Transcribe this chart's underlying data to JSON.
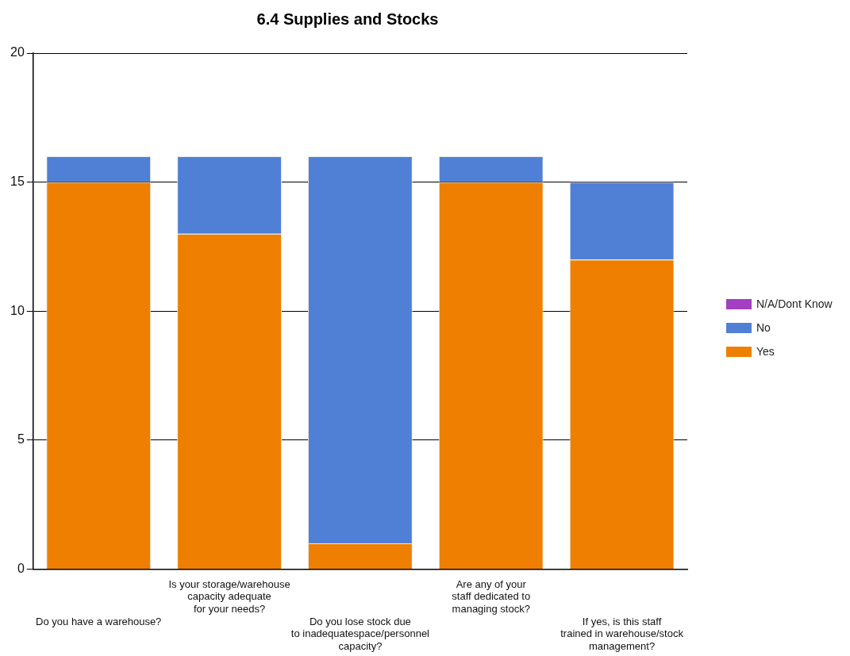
{
  "chart_data": {
    "type": "bar",
    "title": "6.4 Supplies and Stocks",
    "stacked": true,
    "legend": "right",
    "grid": "y",
    "categories": [
      "Do you have a warehouse?",
      "Is your storage/warehouse\ncapacity adequate\nfor your needs?",
      "Do you lose stock due\nto inadequatespace/personnel\ncapacity?",
      "Are any of your\nstaff dedicated to\nmanaging stock?",
      "If yes, is this staff\ntrained in warehouse/stock\nmanagement?"
    ],
    "series": [
      {
        "name": "Yes",
        "color": "#ee7f00",
        "values": [
          15,
          13,
          1,
          15,
          12
        ]
      },
      {
        "name": "No",
        "color": "#4f80d6",
        "values": [
          1,
          3,
          15,
          1,
          3
        ]
      },
      {
        "name": "N/A/Dont Know",
        "color": "#a33fc0",
        "values": [
          0,
          0,
          0,
          0,
          0
        ]
      }
    ],
    "ylim": [
      0,
      20
    ],
    "yticks": [
      0,
      5,
      10,
      15,
      20
    ]
  }
}
